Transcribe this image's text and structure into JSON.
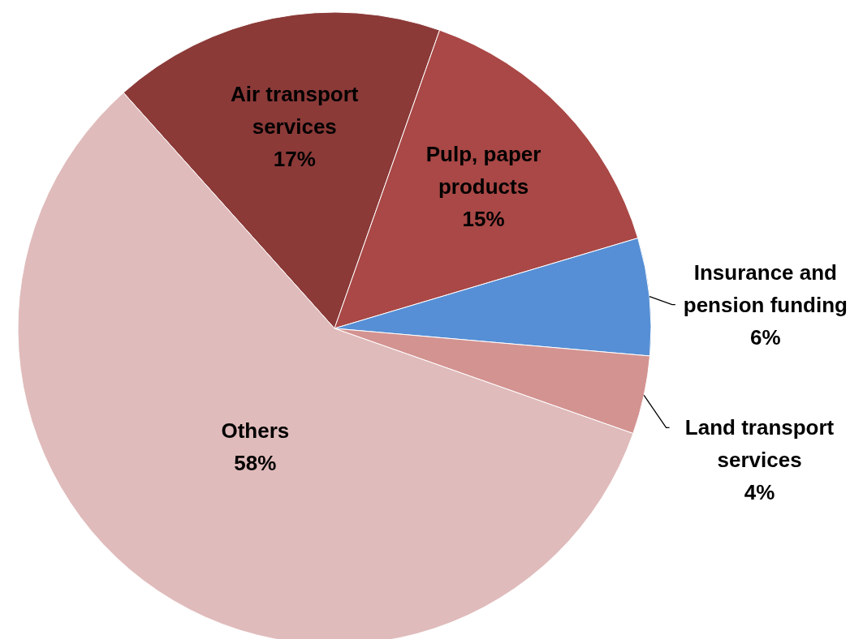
{
  "chart_data": {
    "type": "pie",
    "categories": [
      "Air transport services",
      "Pulp, paper products",
      "Insurance and pension funding",
      "Land transport services",
      "Others"
    ],
    "values": [
      17,
      15,
      6,
      4,
      58
    ],
    "value_labels": [
      "17%",
      "15%",
      "6%",
      "4%",
      "58%"
    ],
    "colors": [
      "#8b3a38",
      "#a94846",
      "#568fd5",
      "#d39391",
      "#e0bbbb"
    ],
    "legend": false
  }
}
